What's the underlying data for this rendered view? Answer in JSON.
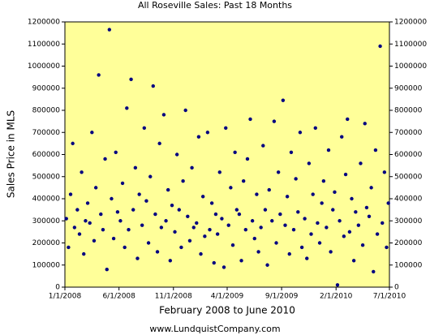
{
  "chart_data": {
    "type": "scatter",
    "title": "All Roseville Sales: Past 18 Months",
    "y_label": "Sales Price in MLS",
    "x_label": "February 2008 to June 2010",
    "footer": "www.LundquistCompany.com",
    "color": "#000080",
    "background": "#ffff99",
    "xlim": [
      "1/1/2008",
      "7/1/2010"
    ],
    "xticks": [
      "1/1/2008",
      "6/1/2008",
      "11/1/2008",
      "4/1/2009",
      "9/1/2009",
      "2/1/2010",
      "7/1/2010"
    ],
    "ylim": [
      0,
      1200000
    ],
    "yticks": [
      0,
      100000,
      200000,
      300000,
      400000,
      500000,
      600000,
      700000,
      800000,
      900000,
      1000000,
      1100000,
      1200000
    ],
    "x": [
      "1/5/2008",
      "1/11/2008",
      "1/17/2008",
      "1/23/2008",
      "1/28/2008",
      "2/5/2008",
      "2/11/2008",
      "2/17/2008",
      "2/23/2008",
      "2/28/2008",
      "3/5/2008",
      "3/11/2008",
      "3/17/2008",
      "3/23/2008",
      "3/28/2008",
      "4/5/2008",
      "4/11/2008",
      "4/17/2008",
      "4/23/2008",
      "4/28/2008",
      "5/5/2008",
      "5/11/2008",
      "5/17/2008",
      "5/23/2008",
      "5/28/2008",
      "6/5/2008",
      "6/11/2008",
      "6/17/2008",
      "6/23/2008",
      "6/28/2008",
      "7/5/2008",
      "7/11/2008",
      "7/17/2008",
      "7/23/2008",
      "7/28/2008",
      "8/5/2008",
      "8/11/2008",
      "8/17/2008",
      "8/23/2008",
      "8/28/2008",
      "9/5/2008",
      "9/11/2008",
      "9/17/2008",
      "9/23/2008",
      "9/28/2008",
      "10/5/2008",
      "10/11/2008",
      "10/17/2008",
      "10/23/2008",
      "10/28/2008",
      "11/5/2008",
      "11/11/2008",
      "11/17/2008",
      "11/23/2008",
      "11/28/2008",
      "12/5/2008",
      "12/11/2008",
      "12/17/2008",
      "12/23/2008",
      "12/28/2008",
      "1/5/2009",
      "1/11/2009",
      "1/17/2009",
      "1/23/2009",
      "1/28/2009",
      "2/5/2009",
      "2/11/2009",
      "2/17/2009",
      "2/23/2009",
      "2/28/2009",
      "3/5/2009",
      "3/11/2009",
      "3/17/2009",
      "3/23/2009",
      "3/28/2009",
      "4/5/2009",
      "4/11/2009",
      "4/17/2009",
      "4/23/2009",
      "4/28/2009",
      "5/5/2009",
      "5/11/2009",
      "5/17/2009",
      "5/23/2009",
      "5/28/2009",
      "6/5/2009",
      "6/11/2009",
      "6/17/2009",
      "6/23/2009",
      "6/28/2009",
      "7/5/2009",
      "7/11/2009",
      "7/17/2009",
      "7/23/2009",
      "7/28/2009",
      "8/5/2009",
      "8/11/2009",
      "8/17/2009",
      "8/23/2009",
      "8/28/2009",
      "9/5/2009",
      "9/11/2009",
      "9/17/2009",
      "9/23/2009",
      "9/28/2009",
      "10/5/2009",
      "10/11/2009",
      "10/17/2009",
      "10/23/2009",
      "10/28/2009",
      "11/5/2009",
      "11/11/2009",
      "11/17/2009",
      "11/23/2009",
      "11/28/2009",
      "12/5/2009",
      "12/11/2009",
      "12/17/2009",
      "12/23/2009",
      "12/28/2009",
      "1/5/2010",
      "1/11/2010",
      "1/17/2010",
      "1/23/2010",
      "1/28/2010",
      "2/5/2010",
      "2/11/2010",
      "2/17/2010",
      "2/23/2010",
      "2/28/2010",
      "3/5/2010",
      "3/11/2010",
      "3/17/2010",
      "3/23/2010",
      "3/28/2010",
      "4/5/2010",
      "4/11/2010",
      "4/17/2010",
      "4/23/2010",
      "4/28/2010",
      "5/5/2010",
      "5/11/2010",
      "5/17/2010",
      "5/23/2010",
      "5/28/2010",
      "6/5/2010",
      "6/11/2010",
      "6/17/2010",
      "6/23/2010",
      "6/28/2010"
    ],
    "values": [
      310000,
      180000,
      420000,
      650000,
      270000,
      350000,
      240000,
      520000,
      150000,
      300000,
      380000,
      290000,
      700000,
      210000,
      450000,
      960000,
      330000,
      260000,
      580000,
      80000,
      1165000,
      400000,
      220000,
      610000,
      340000,
      300000,
      470000,
      180000,
      810000,
      260000,
      940000,
      350000,
      540000,
      130000,
      420000,
      280000,
      720000,
      390000,
      200000,
      500000,
      910000,
      330000,
      160000,
      650000,
      270000,
      780000,
      300000,
      440000,
      120000,
      370000,
      250000,
      600000,
      350000,
      180000,
      480000,
      800000,
      320000,
      210000,
      540000,
      270000,
      290000,
      680000,
      150000,
      410000,
      230000,
      700000,
      260000,
      380000,
      110000,
      330000,
      240000,
      520000,
      310000,
      90000,
      720000,
      280000,
      450000,
      190000,
      610000,
      350000,
      330000,
      120000,
      480000,
      260000,
      580000,
      760000,
      300000,
      220000,
      420000,
      160000,
      270000,
      640000,
      350000,
      100000,
      440000,
      300000,
      750000,
      200000,
      520000,
      330000,
      845000,
      280000,
      410000,
      150000,
      610000,
      260000,
      490000,
      340000,
      700000,
      180000,
      310000,
      130000,
      560000,
      240000,
      420000,
      720000,
      290000,
      200000,
      380000,
      480000,
      270000,
      620000,
      160000,
      350000,
      430000,
      10000,
      300000,
      680000,
      230000,
      510000,
      760000,
      250000,
      400000,
      120000,
      340000,
      280000,
      560000,
      190000,
      740000,
      360000,
      320000,
      450000,
      70000,
      620000,
      240000,
      1090000,
      290000,
      520000,
      180000,
      380000
    ]
  }
}
